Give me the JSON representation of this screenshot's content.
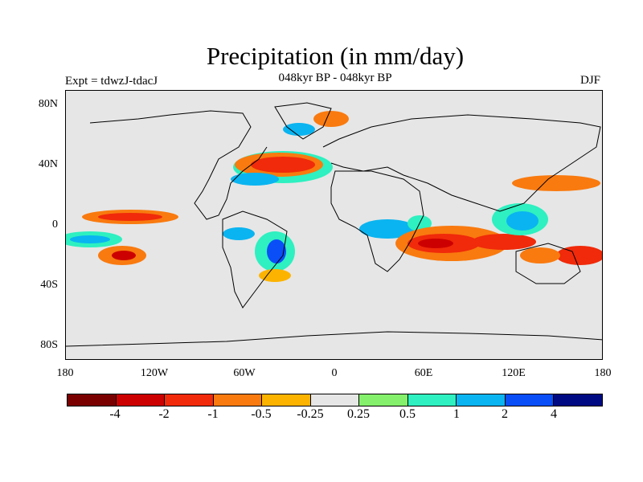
{
  "title": "Precipitation (in mm/day)",
  "subtitle": "048kyr BP - 048kyr BP",
  "experiment": "Expt = tdwzJ-tdacJ",
  "season": "DJF",
  "map": {
    "background_color": "#e6e6e6",
    "latitude_labels": [
      "80N",
      "40N",
      "0",
      "40S",
      "80S"
    ],
    "longitude_labels": [
      "180",
      "120W",
      "60W",
      "0",
      "60E",
      "120E",
      "180"
    ]
  },
  "colorbar": {
    "colors": [
      "#7a0000",
      "#cc0000",
      "#f02a0a",
      "#f97a0f",
      "#fcb300",
      "#e6e6e6",
      "#84f06b",
      "#2ef0c0",
      "#0ab4f0",
      "#0a4ef8",
      "#000a82"
    ],
    "labels": [
      "-4",
      "-2",
      "-1",
      "-0.5",
      "-0.25",
      "0.25",
      "0.5",
      "1",
      "2",
      "4"
    ]
  },
  "anomalies": [
    {
      "level": "-1",
      "color": "#f02a0a"
    },
    {
      "level": "1",
      "color": "#2ef0c0"
    }
  ]
}
